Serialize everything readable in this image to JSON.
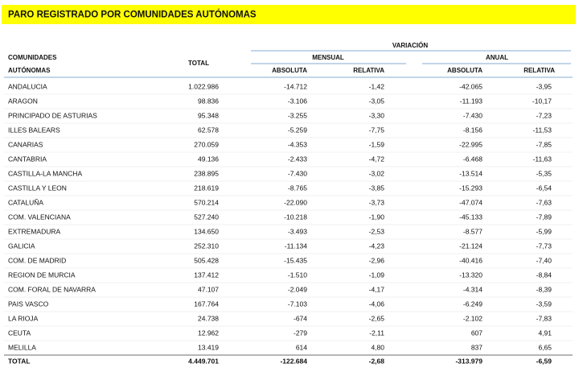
{
  "title": "PARO REGISTRADO POR COMUNIDADES AUTÓNOMAS",
  "table": {
    "header": {
      "group": "VARIACIÓN",
      "region_line1": "COMUNIDADES",
      "region_line2": "AUTÓNOMAS",
      "total": "TOTAL",
      "monthly": "MENSUAL",
      "annual": "ANUAL",
      "monthly_abs": "ABSOLUTA",
      "monthly_rel": "RELATIVA",
      "annual_abs": "ABSOLUTA",
      "annual_rel": "RELATIVA"
    },
    "rows": [
      [
        "ANDALUCIA",
        "1.022.986",
        "-14.712",
        "-1,42",
        "-42.065",
        "-3,95"
      ],
      [
        "ARAGON",
        "98.836",
        "-3.106",
        "-3,05",
        "-11.193",
        "-10,17"
      ],
      [
        "PRINCIPADO DE ASTURIAS",
        "95.348",
        "-3.255",
        "-3,30",
        "-7.430",
        "-7,23"
      ],
      [
        "ILLES BALEARS",
        "62.578",
        "-5.259",
        "-7,75",
        "-8.156",
        "-11,53"
      ],
      [
        "CANARIAS",
        "270.059",
        "-4.353",
        "-1,59",
        "-22.995",
        "-7,85"
      ],
      [
        "CANTABRIA",
        "49.136",
        "-2.433",
        "-4,72",
        "-6.468",
        "-11,63"
      ],
      [
        "CASTILLA-LA MANCHA",
        "238.895",
        "-7.430",
        "-3,02",
        "-13.514",
        "-5,35"
      ],
      [
        "CASTILLA Y LEON",
        "218.619",
        "-8.765",
        "-3,85",
        "-15.293",
        "-6,54"
      ],
      [
        "CATALUÑA",
        "570.214",
        "-22.090",
        "-3,73",
        "-47.074",
        "-7,63"
      ],
      [
        "COM. VALENCIANA",
        "527.240",
        "-10.218",
        "-1,90",
        "-45.133",
        "-7,89"
      ],
      [
        "EXTREMADURA",
        "134.650",
        "-3.493",
        "-2,53",
        "-8.577",
        "-5,99"
      ],
      [
        "GALICIA",
        "252.310",
        "-11.134",
        "-4,23",
        "-21.124",
        "-7,73"
      ],
      [
        "COM. DE MADRID",
        "505.428",
        "-15.435",
        "-2,96",
        "-40.416",
        "-7,40"
      ],
      [
        "REGION DE MURCIA",
        "137.412",
        "-1.510",
        "-1,09",
        "-13.320",
        "-8,84"
      ],
      [
        "COM. FORAL DE NAVARRA",
        "47.107",
        "-2.049",
        "-4,17",
        "-4.314",
        "-8,39"
      ],
      [
        "PAIS VASCO",
        "167.764",
        "-7.103",
        "-4,06",
        "-6.249",
        "-3,59"
      ],
      [
        "LA RIOJA",
        "24.738",
        "-674",
        "-2,65",
        "-2.102",
        "-7,83"
      ],
      [
        "CEUTA",
        "12.962",
        "-279",
        "-2,11",
        "607",
        "4,91"
      ],
      [
        "MELILLA",
        "13.419",
        "614",
        "4,80",
        "837",
        "6,65"
      ]
    ],
    "total_row": [
      "TOTAL",
      "4.449.701",
      "-122.684",
      "-2,68",
      "-313.979",
      "-6,59"
    ]
  }
}
